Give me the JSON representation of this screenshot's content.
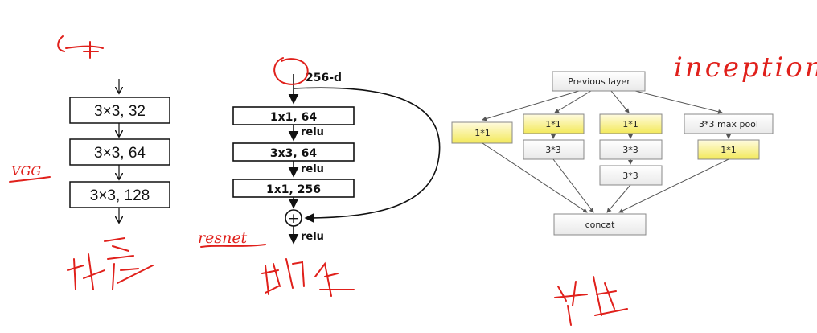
{
  "vgg": {
    "layers": [
      "3×3, 32",
      "3×3, 64",
      "3×3, 128"
    ],
    "annotation_left": "VGG",
    "annotation_bottom": "堆叠"
  },
  "resnet": {
    "input_label": "256-d",
    "layers": [
      "1x1, 64",
      "3x3, 64",
      "1x1, 256"
    ],
    "relu_label": "relu",
    "sum_symbol": "+",
    "annotation_left": "resnet",
    "annotation_bottom": "跳连"
  },
  "inception": {
    "top": "Previous layer",
    "branch1": "1*1",
    "branch2_a": "1*1",
    "branch2_b": "3*3",
    "branch3_a": "1*1",
    "branch3_b": "3*3",
    "branch3_c": "3*3",
    "branch4_a": "3*3 max pool",
    "branch4_b": "1*1",
    "output": "concat",
    "annotation_title": "inception",
    "annotation_bottom": "并连"
  },
  "colors": {
    "ink": "#111111",
    "annotation_red": "#e0201b",
    "highlight_yellow": "#f7ee7a",
    "box_gray": "#f3f3f3",
    "line_gray": "#555555"
  }
}
